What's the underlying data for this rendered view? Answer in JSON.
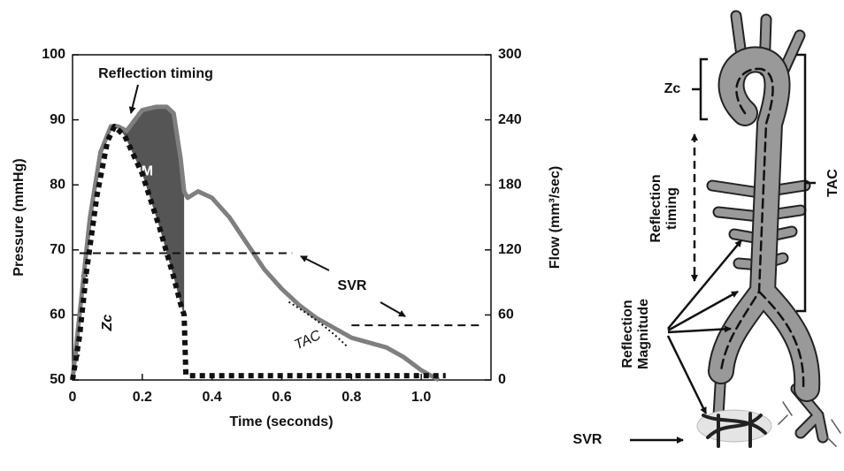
{
  "chart_data": {
    "type": "line",
    "x_label": "Time (seconds)",
    "y_label": "Pressure (mmHg)",
    "y2_label": "Flow (mm³/sec)",
    "xlim": [
      0,
      1.2
    ],
    "xticks": [
      0,
      0.2,
      0.4,
      0.6,
      0.8,
      {
        "value": 1,
        "label": "1.0"
      }
    ],
    "ylim": [
      50,
      100
    ],
    "yticks": [
      50,
      60,
      70,
      80,
      90,
      100
    ],
    "y2lim": [
      0,
      300
    ],
    "y2ticks": [
      0,
      60,
      120,
      180,
      240,
      300
    ],
    "series": [
      {
        "color": "#7f7f7f",
        "line_style": "solid",
        "axis": "y",
        "x": [
          0,
          0.02,
          0.05,
          0.08,
          0.11,
          0.13,
          0.155,
          0.2,
          0.24,
          0.27,
          0.29,
          0.31,
          0.32,
          0.33,
          0.36,
          0.4,
          0.45,
          0.5,
          0.55,
          0.6,
          0.65,
          0.7,
          0.8,
          0.9,
          0.95,
          1.0,
          1.05
        ],
        "values": [
          50,
          60,
          75,
          85,
          89,
          89,
          88.3,
          91.5,
          92,
          92,
          91,
          84,
          79,
          78,
          79,
          78,
          75,
          71,
          67,
          64,
          61.5,
          59.5,
          56.5,
          55,
          53.5,
          51.5,
          50
        ]
      },
      {
        "color": "#111111",
        "line_style": "dotted",
        "axis": "y2",
        "x": [
          0,
          0.02,
          0.04,
          0.07,
          0.1,
          0.12,
          0.15,
          0.2,
          0.25,
          0.29,
          0.31,
          0.32,
          0.325,
          0.33,
          0.6,
          1.07
        ],
        "values": [
          0,
          40,
          100,
          170,
          220,
          234,
          225,
          190,
          140,
          95,
          70,
          60,
          5,
          4,
          4,
          4
        ]
      }
    ],
    "fill": {
      "label": "RM",
      "color": "#555555",
      "x_from": 0.13,
      "x_to": 0.32
    },
    "hlines": [
      {
        "y": 69.5,
        "x": [
          0.02,
          0.63
        ]
      },
      {
        "y": 58.4,
        "x": [
          0.8,
          1.18
        ]
      }
    ],
    "tangent": {
      "label": "TAC",
      "x": [
        0.62,
        0.79
      ],
      "y": [
        62,
        55
      ]
    },
    "annotations": {
      "reflection_timing": "Reflection timing",
      "svr": "SVR",
      "zc": "Zc"
    }
  },
  "diagram": {
    "zc": "Zc",
    "tac": "TAC",
    "reflection_timing": [
      "Reflection",
      "timing"
    ],
    "reflection_magnitude": [
      "Reflection",
      "Magnitude"
    ],
    "svr": "SVR"
  }
}
